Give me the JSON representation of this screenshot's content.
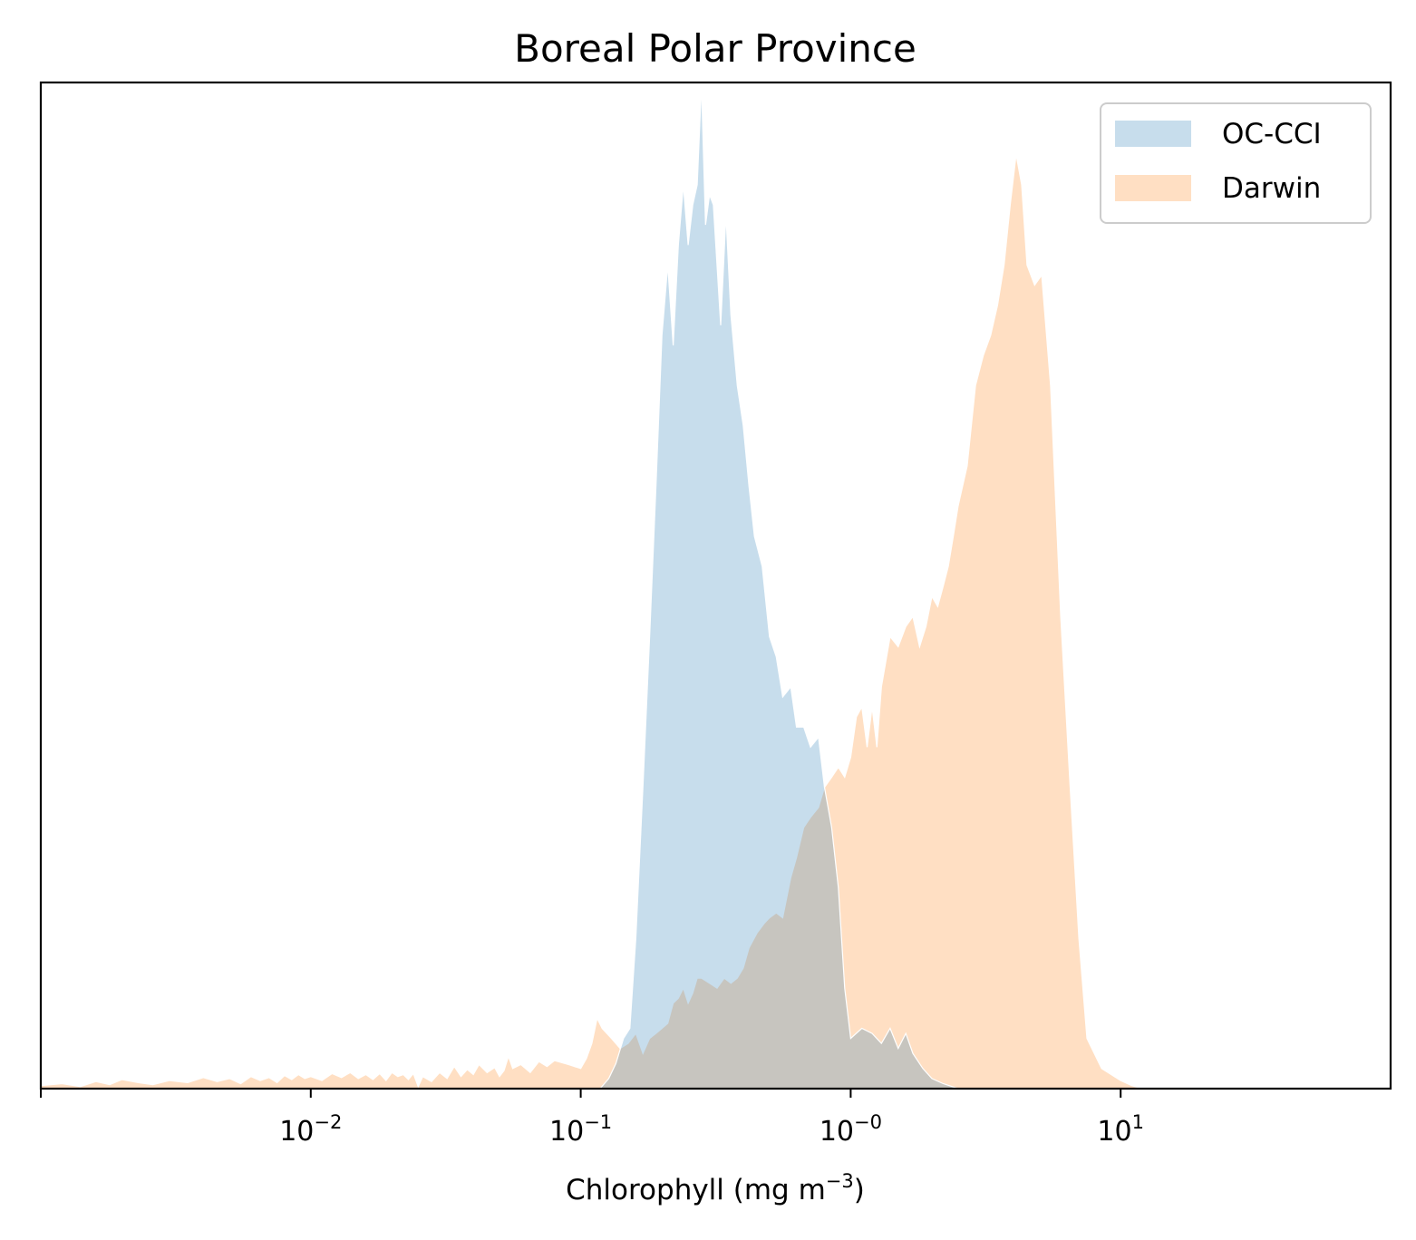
{
  "chart_data": {
    "type": "area",
    "title": "Boreal Polar Province",
    "xlabel": "Chlorophyll  (mg m",
    "xlabel_sup": "−3",
    "xlabel_suffix": ")",
    "xscale": "log",
    "xlim": [
      0.001,
      100
    ],
    "ylim": [
      0,
      1
    ],
    "y_ticks_shown": false,
    "grid": false,
    "legend_position": "top-right",
    "x_ticks": [
      {
        "value": 0.01,
        "base": "10",
        "exp": "−2"
      },
      {
        "value": 0.1,
        "base": "10",
        "exp": "−1"
      },
      {
        "value": 1,
        "base": "10",
        "exp": "−0"
      },
      {
        "value": 10,
        "base": "10",
        "exp": "1"
      }
    ],
    "series": [
      {
        "name": "OC-CCI",
        "color": "#1f77b4",
        "opacity": 0.25,
        "points": [
          [
            0.118,
            0.0
          ],
          [
            0.127,
            0.01
          ],
          [
            0.135,
            0.025
          ],
          [
            0.144,
            0.05
          ],
          [
            0.152,
            0.06
          ],
          [
            0.16,
            0.15
          ],
          [
            0.17,
            0.3
          ],
          [
            0.18,
            0.45
          ],
          [
            0.19,
            0.6
          ],
          [
            0.2,
            0.75
          ],
          [
            0.21,
            0.82
          ],
          [
            0.22,
            0.74
          ],
          [
            0.23,
            0.84
          ],
          [
            0.24,
            0.9
          ],
          [
            0.25,
            0.84
          ],
          [
            0.26,
            0.88
          ],
          [
            0.27,
            0.9
          ],
          [
            0.28,
            1.0
          ],
          [
            0.29,
            0.86
          ],
          [
            0.3,
            0.89
          ],
          [
            0.31,
            0.88
          ],
          [
            0.33,
            0.76
          ],
          [
            0.345,
            0.87
          ],
          [
            0.36,
            0.77
          ],
          [
            0.38,
            0.7
          ],
          [
            0.4,
            0.66
          ],
          [
            0.42,
            0.6
          ],
          [
            0.44,
            0.55
          ],
          [
            0.47,
            0.52
          ],
          [
            0.5,
            0.45
          ],
          [
            0.53,
            0.43
          ],
          [
            0.56,
            0.39
          ],
          [
            0.6,
            0.4
          ],
          [
            0.63,
            0.36
          ],
          [
            0.67,
            0.36
          ],
          [
            0.71,
            0.34
          ],
          [
            0.76,
            0.35
          ],
          [
            0.8,
            0.3
          ],
          [
            0.85,
            0.26
          ],
          [
            0.9,
            0.2
          ],
          [
            0.95,
            0.1
          ],
          [
            1.0,
            0.05
          ],
          [
            1.1,
            0.06
          ],
          [
            1.2,
            0.055
          ],
          [
            1.3,
            0.045
          ],
          [
            1.4,
            0.06
          ],
          [
            1.5,
            0.04
          ],
          [
            1.6,
            0.055
          ],
          [
            1.7,
            0.035
          ],
          [
            1.85,
            0.02
          ],
          [
            2.0,
            0.01
          ],
          [
            2.2,
            0.005
          ],
          [
            2.5,
            0.0
          ]
        ]
      },
      {
        "name": "Darwin",
        "color": "#ff7f0e",
        "opacity": 0.25,
        "points": [
          [
            0.001,
            0.003
          ],
          [
            0.0012,
            0.005
          ],
          [
            0.0014,
            0.002
          ],
          [
            0.0016,
            0.007
          ],
          [
            0.0018,
            0.004
          ],
          [
            0.002,
            0.009
          ],
          [
            0.0023,
            0.006
          ],
          [
            0.0026,
            0.004
          ],
          [
            0.003,
            0.008
          ],
          [
            0.0035,
            0.006
          ],
          [
            0.004,
            0.011
          ],
          [
            0.0045,
            0.007
          ],
          [
            0.005,
            0.01
          ],
          [
            0.0055,
            0.005
          ],
          [
            0.006,
            0.012
          ],
          [
            0.0065,
            0.008
          ],
          [
            0.007,
            0.011
          ],
          [
            0.0075,
            0.006
          ],
          [
            0.008,
            0.013
          ],
          [
            0.0085,
            0.009
          ],
          [
            0.009,
            0.014
          ],
          [
            0.0095,
            0.01
          ],
          [
            0.01,
            0.012
          ],
          [
            0.011,
            0.008
          ],
          [
            0.012,
            0.015
          ],
          [
            0.013,
            0.011
          ],
          [
            0.014,
            0.016
          ],
          [
            0.015,
            0.01
          ],
          [
            0.016,
            0.014
          ],
          [
            0.017,
            0.009
          ],
          [
            0.018,
            0.015
          ],
          [
            0.019,
            0.008
          ],
          [
            0.02,
            0.016
          ],
          [
            0.021,
            0.012
          ],
          [
            0.022,
            0.014
          ],
          [
            0.023,
            0.009
          ],
          [
            0.024,
            0.015
          ],
          [
            0.025,
            0.002
          ],
          [
            0.026,
            0.012
          ],
          [
            0.028,
            0.007
          ],
          [
            0.03,
            0.016
          ],
          [
            0.032,
            0.01
          ],
          [
            0.034,
            0.022
          ],
          [
            0.036,
            0.012
          ],
          [
            0.038,
            0.019
          ],
          [
            0.04,
            0.014
          ],
          [
            0.042,
            0.024
          ],
          [
            0.045,
            0.016
          ],
          [
            0.048,
            0.021
          ],
          [
            0.05,
            0.012
          ],
          [
            0.052,
            0.018
          ],
          [
            0.054,
            0.032
          ],
          [
            0.056,
            0.02
          ],
          [
            0.06,
            0.024
          ],
          [
            0.065,
            0.016
          ],
          [
            0.07,
            0.027
          ],
          [
            0.075,
            0.022
          ],
          [
            0.08,
            0.028
          ],
          [
            0.09,
            0.024
          ],
          [
            0.1,
            0.02
          ],
          [
            0.105,
            0.03
          ],
          [
            0.11,
            0.045
          ],
          [
            0.115,
            0.07
          ],
          [
            0.12,
            0.06
          ],
          [
            0.13,
            0.05
          ],
          [
            0.14,
            0.04
          ],
          [
            0.15,
            0.045
          ],
          [
            0.16,
            0.055
          ],
          [
            0.17,
            0.035
          ],
          [
            0.18,
            0.05
          ],
          [
            0.19,
            0.055
          ],
          [
            0.2,
            0.06
          ],
          [
            0.21,
            0.065
          ],
          [
            0.22,
            0.085
          ],
          [
            0.23,
            0.09
          ],
          [
            0.24,
            0.1
          ],
          [
            0.25,
            0.085
          ],
          [
            0.26,
            0.095
          ],
          [
            0.27,
            0.11
          ],
          [
            0.28,
            0.11
          ],
          [
            0.3,
            0.105
          ],
          [
            0.32,
            0.1
          ],
          [
            0.34,
            0.11
          ],
          [
            0.36,
            0.105
          ],
          [
            0.38,
            0.11
          ],
          [
            0.4,
            0.12
          ],
          [
            0.42,
            0.14
          ],
          [
            0.45,
            0.155
          ],
          [
            0.48,
            0.165
          ],
          [
            0.5,
            0.17
          ],
          [
            0.53,
            0.175
          ],
          [
            0.56,
            0.17
          ],
          [
            0.6,
            0.21
          ],
          [
            0.63,
            0.23
          ],
          [
            0.67,
            0.26
          ],
          [
            0.71,
            0.27
          ],
          [
            0.76,
            0.28
          ],
          [
            0.8,
            0.3
          ],
          [
            0.85,
            0.31
          ],
          [
            0.9,
            0.32
          ],
          [
            0.95,
            0.31
          ],
          [
            1.0,
            0.33
          ],
          [
            1.05,
            0.37
          ],
          [
            1.1,
            0.38
          ],
          [
            1.15,
            0.34
          ],
          [
            1.2,
            0.38
          ],
          [
            1.25,
            0.34
          ],
          [
            1.3,
            0.4
          ],
          [
            1.4,
            0.45
          ],
          [
            1.5,
            0.44
          ],
          [
            1.6,
            0.46
          ],
          [
            1.7,
            0.47
          ],
          [
            1.8,
            0.44
          ],
          [
            1.9,
            0.46
          ],
          [
            2.0,
            0.49
          ],
          [
            2.1,
            0.48
          ],
          [
            2.2,
            0.5
          ],
          [
            2.3,
            0.52
          ],
          [
            2.4,
            0.55
          ],
          [
            2.5,
            0.58
          ],
          [
            2.7,
            0.62
          ],
          [
            2.9,
            0.7
          ],
          [
            3.1,
            0.73
          ],
          [
            3.3,
            0.75
          ],
          [
            3.5,
            0.78
          ],
          [
            3.7,
            0.82
          ],
          [
            3.9,
            0.88
          ],
          [
            4.1,
            0.93
          ],
          [
            4.3,
            0.9
          ],
          [
            4.5,
            0.82
          ],
          [
            4.8,
            0.8
          ],
          [
            5.1,
            0.81
          ],
          [
            5.5,
            0.7
          ],
          [
            6.0,
            0.47
          ],
          [
            6.5,
            0.3
          ],
          [
            7.0,
            0.15
          ],
          [
            7.5,
            0.05
          ],
          [
            8.5,
            0.02
          ],
          [
            10.0,
            0.008
          ],
          [
            11.0,
            0.003
          ],
          [
            12.0,
            0.0
          ]
        ]
      }
    ],
    "overlap_color": "#d4c4b4"
  }
}
